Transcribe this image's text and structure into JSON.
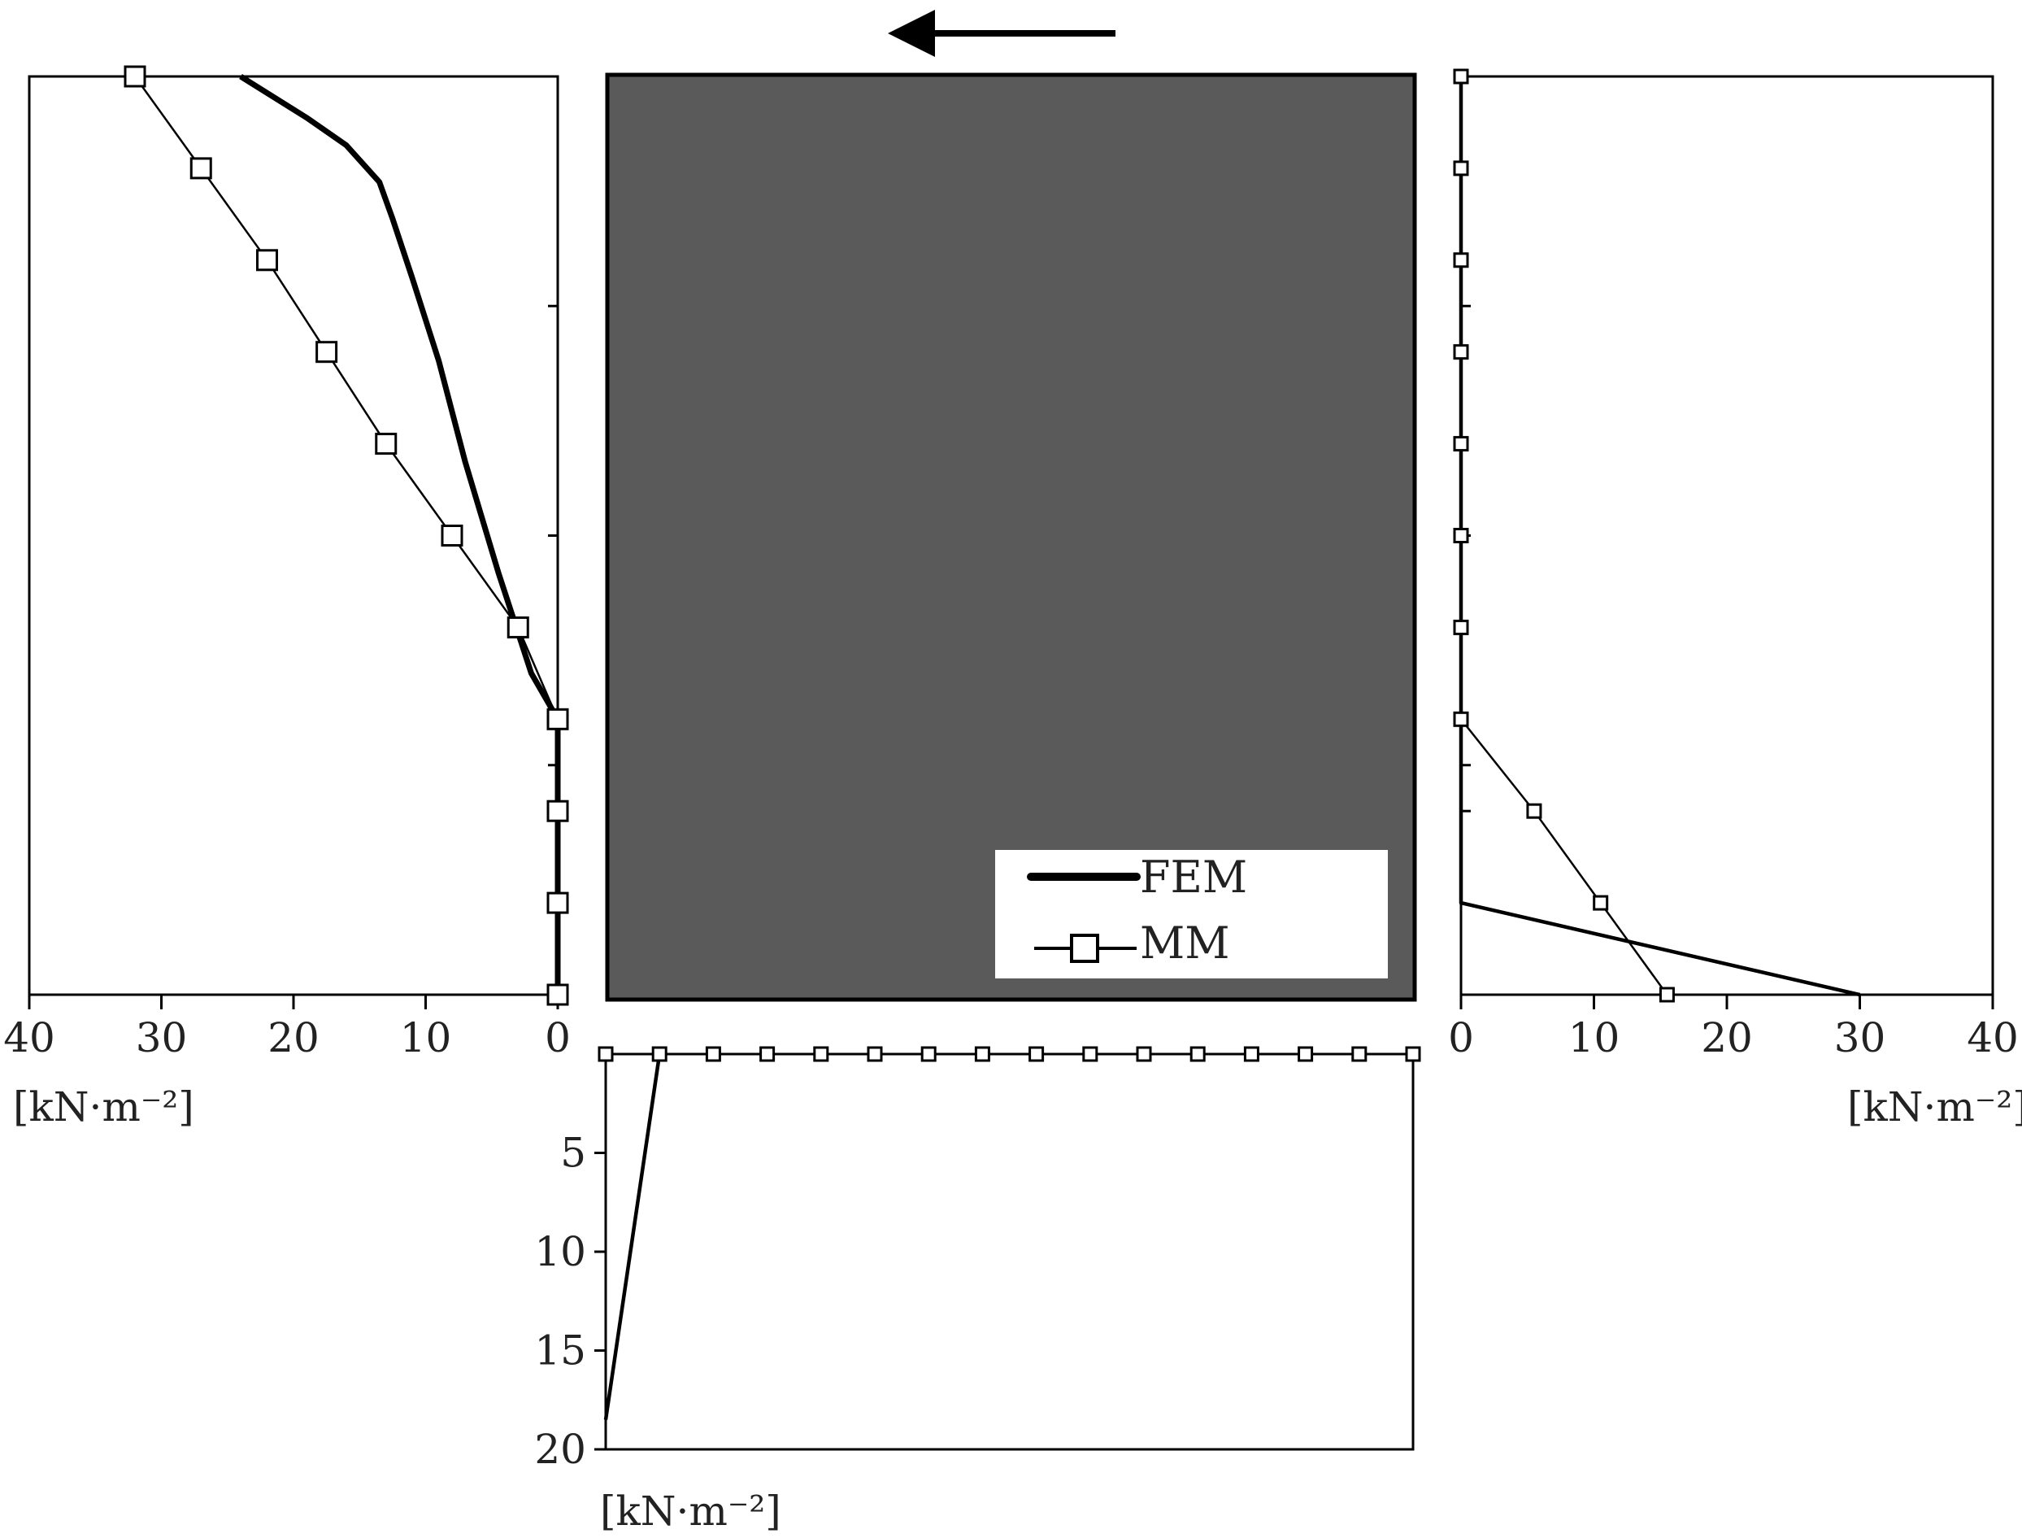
{
  "colors": {
    "block": "#5a5a5a",
    "line": "#000000",
    "background": "#ffffff",
    "marker_fill": "#ffffff"
  },
  "icons": {
    "direction_arrow": "arrow-left-icon"
  },
  "legend": {
    "fem_label": "FEM",
    "mm_label": "MM",
    "placement": "bottom-right"
  },
  "chart_data": [
    {
      "type": "line",
      "panel": "left",
      "orientation": "horizontal-values-reversed",
      "xlim": [
        40,
        0
      ],
      "x_tick_labels": [
        "40",
        "30",
        "20",
        "10",
        "0"
      ],
      "xlabel": "[kN·m⁻²]",
      "grid": false,
      "series": [
        {
          "name": "MM",
          "marker": "square",
          "points": [
            [
              32,
              0
            ],
            [
              27,
              1
            ],
            [
              22,
              2
            ],
            [
              17.5,
              3
            ],
            [
              13,
              4
            ],
            [
              8,
              5
            ],
            [
              3,
              6
            ],
            [
              0,
              7
            ],
            [
              0,
              8
            ],
            [
              0,
              9
            ],
            [
              0,
              10
            ]
          ]
        },
        {
          "name": "FEM",
          "marker": "none",
          "points": [
            [
              24,
              0
            ],
            [
              19,
              0.45
            ],
            [
              16,
              0.75
            ],
            [
              13.5,
              1.15
            ],
            [
              12.5,
              1.55
            ],
            [
              11,
              2.2
            ],
            [
              9,
              3.1
            ],
            [
              7,
              4.2
            ],
            [
              4.5,
              5.4
            ],
            [
              2,
              6.5
            ],
            [
              0,
              7
            ],
            [
              0,
              10
            ]
          ]
        }
      ]
    },
    {
      "type": "line",
      "panel": "right",
      "orientation": "horizontal-values",
      "xlim": [
        0,
        40
      ],
      "x_tick_labels": [
        "0",
        "10",
        "20",
        "30",
        "40"
      ],
      "xlabel": "[kN·m⁻²]",
      "grid": false,
      "series": [
        {
          "name": "MM",
          "marker": "square",
          "points": [
            [
              0,
              0
            ],
            [
              0,
              1
            ],
            [
              0,
              2
            ],
            [
              0,
              3
            ],
            [
              0,
              4
            ],
            [
              0,
              5
            ],
            [
              0,
              6
            ],
            [
              0,
              7
            ],
            [
              5.5,
              8
            ],
            [
              10.5,
              9
            ],
            [
              15.5,
              10
            ]
          ]
        },
        {
          "name": "FEM",
          "marker": "none",
          "points": [
            [
              0,
              0
            ],
            [
              0,
              9
            ],
            [
              30,
              10
            ]
          ]
        }
      ]
    },
    {
      "type": "line",
      "panel": "bottom",
      "orientation": "vertical-values-downward",
      "ylim": [
        0,
        20
      ],
      "y_tick_labels": [
        "5",
        "10",
        "15",
        "20"
      ],
      "ylabel": "[kN·m⁻²]",
      "grid": false,
      "series": [
        {
          "name": "MM",
          "marker": "square",
          "points": [
            [
              0,
              0
            ],
            [
              1,
              0
            ],
            [
              2,
              0
            ],
            [
              3,
              0
            ],
            [
              4,
              0
            ],
            [
              5,
              0
            ],
            [
              6,
              0
            ],
            [
              7,
              0
            ],
            [
              8,
              0
            ],
            [
              9,
              0
            ],
            [
              10,
              0
            ],
            [
              11,
              0
            ],
            [
              12,
              0
            ],
            [
              13,
              0
            ],
            [
              14,
              0
            ],
            [
              15,
              0
            ]
          ]
        },
        {
          "name": "FEM",
          "marker": "none",
          "points": [
            [
              1,
              0
            ],
            [
              0,
              18.5
            ]
          ]
        }
      ]
    }
  ]
}
